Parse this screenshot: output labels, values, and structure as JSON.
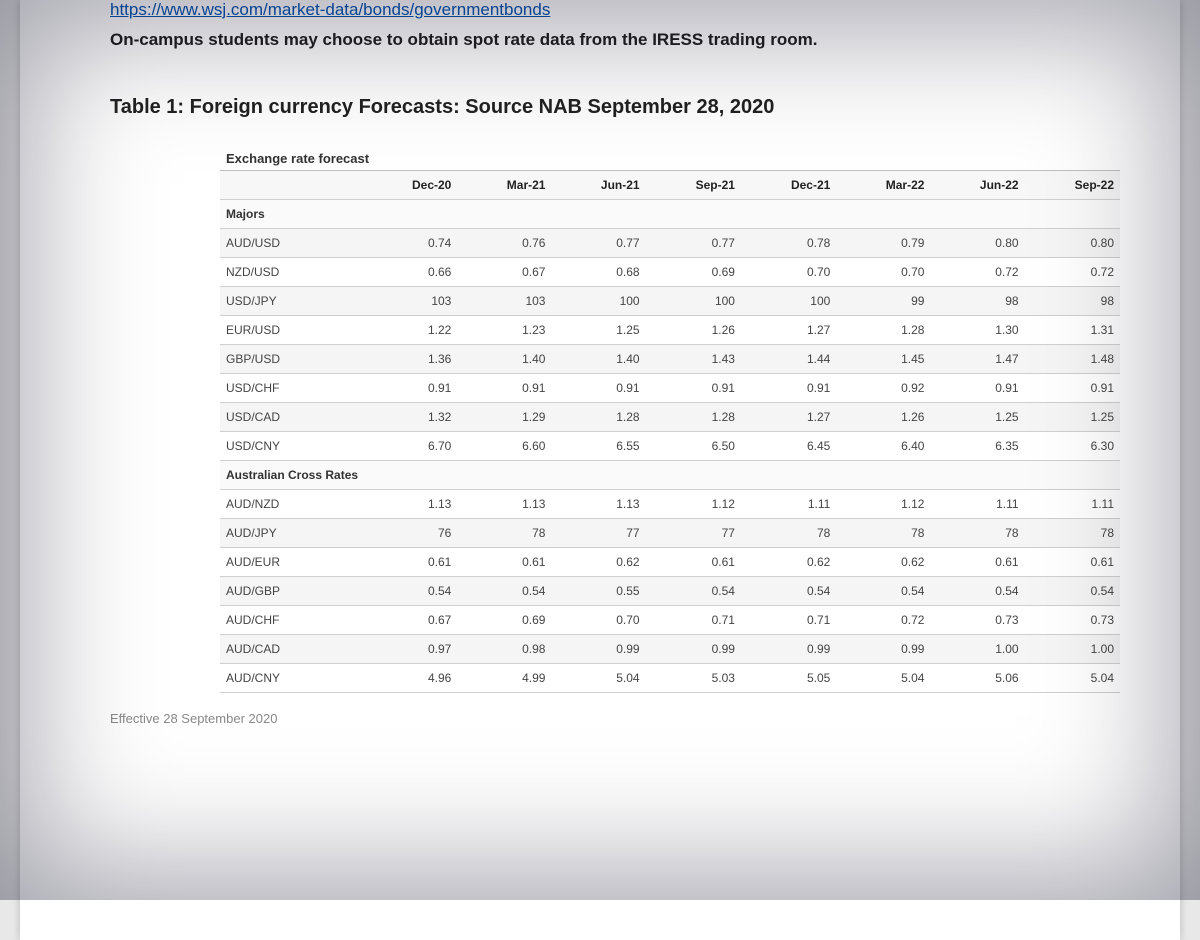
{
  "url": "https://www.wsj.com/market-data/bonds/governmentbonds",
  "intro": "On-campus students may choose to obtain spot rate data from the IRESS trading room.",
  "table_title": "Table 1: Foreign currency Forecasts: Source NAB September 28, 2020",
  "forecast_label": "Exchange rate forecast",
  "effective": "Effective 28 September 2020",
  "table": {
    "type": "table",
    "columns": [
      "",
      "Dec-20",
      "Mar-21",
      "Jun-21",
      "Sep-21",
      "Dec-21",
      "Mar-22",
      "Jun-22",
      "Sep-22"
    ],
    "col_align": [
      "left",
      "right",
      "right",
      "right",
      "right",
      "right",
      "right",
      "right",
      "right"
    ],
    "header_bg": "#f7f7f7",
    "row_alt_bg": "#f5f5f5",
    "border_color": "#cfcfcf",
    "sections": [
      {
        "label": "Majors",
        "rows": [
          [
            "AUD/USD",
            "0.74",
            "0.76",
            "0.77",
            "0.77",
            "0.78",
            "0.79",
            "0.80",
            "0.80"
          ],
          [
            "NZD/USD",
            "0.66",
            "0.67",
            "0.68",
            "0.69",
            "0.70",
            "0.70",
            "0.72",
            "0.72"
          ],
          [
            "USD/JPY",
            "103",
            "103",
            "100",
            "100",
            "100",
            "99",
            "98",
            "98"
          ],
          [
            "EUR/USD",
            "1.22",
            "1.23",
            "1.25",
            "1.26",
            "1.27",
            "1.28",
            "1.30",
            "1.31"
          ],
          [
            "GBP/USD",
            "1.36",
            "1.40",
            "1.40",
            "1.43",
            "1.44",
            "1.45",
            "1.47",
            "1.48"
          ],
          [
            "USD/CHF",
            "0.91",
            "0.91",
            "0.91",
            "0.91",
            "0.91",
            "0.92",
            "0.91",
            "0.91"
          ],
          [
            "USD/CAD",
            "1.32",
            "1.29",
            "1.28",
            "1.28",
            "1.27",
            "1.26",
            "1.25",
            "1.25"
          ],
          [
            "USD/CNY",
            "6.70",
            "6.60",
            "6.55",
            "6.50",
            "6.45",
            "6.40",
            "6.35",
            "6.30"
          ]
        ]
      },
      {
        "label": "Australian Cross Rates",
        "rows": [
          [
            "AUD/NZD",
            "1.13",
            "1.13",
            "1.13",
            "1.12",
            "1.11",
            "1.12",
            "1.11",
            "1.11"
          ],
          [
            "AUD/JPY",
            "76",
            "78",
            "77",
            "77",
            "78",
            "78",
            "78",
            "78"
          ],
          [
            "AUD/EUR",
            "0.61",
            "0.61",
            "0.62",
            "0.61",
            "0.62",
            "0.62",
            "0.61",
            "0.61"
          ],
          [
            "AUD/GBP",
            "0.54",
            "0.54",
            "0.55",
            "0.54",
            "0.54",
            "0.54",
            "0.54",
            "0.54"
          ],
          [
            "AUD/CHF",
            "0.67",
            "0.69",
            "0.70",
            "0.71",
            "0.71",
            "0.72",
            "0.73",
            "0.73"
          ],
          [
            "AUD/CAD",
            "0.97",
            "0.98",
            "0.99",
            "0.99",
            "0.99",
            "0.99",
            "1.00",
            "1.00"
          ],
          [
            "AUD/CNY",
            "4.96",
            "4.99",
            "5.04",
            "5.03",
            "5.05",
            "5.04",
            "5.06",
            "5.04"
          ]
        ]
      }
    ]
  }
}
